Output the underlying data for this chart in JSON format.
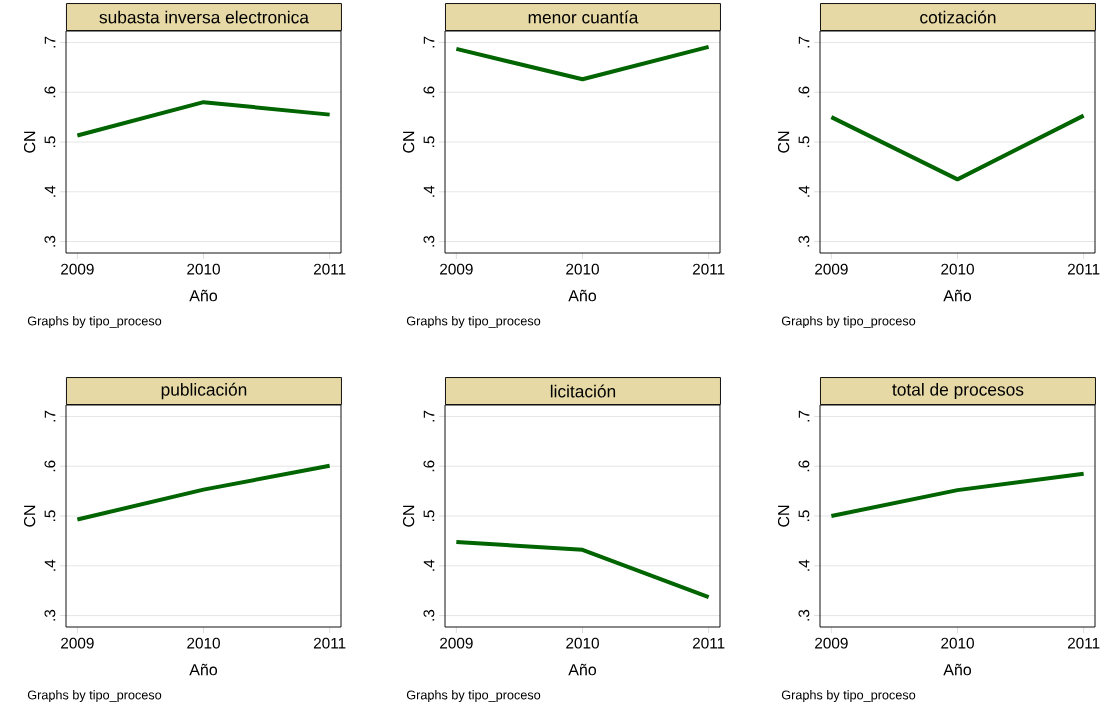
{
  "chart_data": [
    {
      "type": "line",
      "title": "subasta inversa electronica",
      "xlabel": "Año",
      "ylabel": "CN",
      "x": [
        2009,
        2010,
        2011
      ],
      "series": [
        {
          "color": "#006400",
          "values": [
            0.513,
            0.58,
            0.555
          ]
        }
      ],
      "xlim": [
        2008.91,
        2011.09
      ],
      "ylim": [
        0.277,
        0.723
      ],
      "xticks": [
        2009,
        2010,
        2011
      ],
      "yticks": [
        {
          "value": 0.3,
          "label": ".3"
        },
        {
          "value": 0.4,
          "label": ".4"
        },
        {
          "value": 0.5,
          "label": ".5"
        },
        {
          "value": 0.6,
          "label": ".6"
        },
        {
          "value": 0.7,
          "label": ".7"
        }
      ],
      "grid": "y",
      "annotations": [
        "Graphs by tipo_proceso"
      ]
    },
    {
      "type": "line",
      "title": "menor cuantía",
      "xlabel": "Año",
      "ylabel": "CN",
      "x": [
        2009,
        2010,
        2011
      ],
      "series": [
        {
          "color": "#006400",
          "values": [
            0.687,
            0.626,
            0.691
          ]
        }
      ],
      "xlim": [
        2008.91,
        2011.09
      ],
      "ylim": [
        0.277,
        0.723
      ],
      "xticks": [
        2009,
        2010,
        2011
      ],
      "yticks": [
        {
          "value": 0.3,
          "label": ".3"
        },
        {
          "value": 0.4,
          "label": ".4"
        },
        {
          "value": 0.5,
          "label": ".5"
        },
        {
          "value": 0.6,
          "label": ".6"
        },
        {
          "value": 0.7,
          "label": ".7"
        }
      ],
      "grid": "y",
      "annotations": [
        "Graphs by tipo_proceso"
      ]
    },
    {
      "type": "line",
      "title": "cotización",
      "xlabel": "Año",
      "ylabel": "CN",
      "x": [
        2009,
        2010,
        2011
      ],
      "series": [
        {
          "color": "#006400",
          "values": [
            0.55,
            0.425,
            0.553
          ]
        }
      ],
      "xlim": [
        2008.91,
        2011.09
      ],
      "ylim": [
        0.277,
        0.723
      ],
      "xticks": [
        2009,
        2010,
        2011
      ],
      "yticks": [
        {
          "value": 0.3,
          "label": ".3"
        },
        {
          "value": 0.4,
          "label": ".4"
        },
        {
          "value": 0.5,
          "label": ".5"
        },
        {
          "value": 0.6,
          "label": ".6"
        },
        {
          "value": 0.7,
          "label": ".7"
        }
      ],
      "grid": "y",
      "annotations": [
        "Graphs by tipo_proceso"
      ]
    },
    {
      "type": "line",
      "title": "publicación",
      "xlabel": "Año",
      "ylabel": "CN",
      "x": [
        2009,
        2010,
        2011
      ],
      "series": [
        {
          "color": "#006400",
          "values": [
            0.493,
            0.553,
            0.601
          ]
        }
      ],
      "xlim": [
        2008.91,
        2011.09
      ],
      "ylim": [
        0.277,
        0.723
      ],
      "xticks": [
        2009,
        2010,
        2011
      ],
      "yticks": [
        {
          "value": 0.3,
          "label": ".3"
        },
        {
          "value": 0.4,
          "label": ".4"
        },
        {
          "value": 0.5,
          "label": ".5"
        },
        {
          "value": 0.6,
          "label": ".6"
        },
        {
          "value": 0.7,
          "label": ".7"
        }
      ],
      "grid": "y",
      "annotations": [
        "Graphs by tipo_proceso"
      ]
    },
    {
      "type": "line",
      "title": "licitación",
      "xlabel": "Año",
      "ylabel": "CN",
      "x": [
        2009,
        2010,
        2011
      ],
      "series": [
        {
          "color": "#006400",
          "values": [
            0.448,
            0.432,
            0.337
          ]
        }
      ],
      "xlim": [
        2008.91,
        2011.09
      ],
      "ylim": [
        0.277,
        0.723
      ],
      "xticks": [
        2009,
        2010,
        2011
      ],
      "yticks": [
        {
          "value": 0.3,
          "label": ".3"
        },
        {
          "value": 0.4,
          "label": ".4"
        },
        {
          "value": 0.5,
          "label": ".5"
        },
        {
          "value": 0.6,
          "label": ".6"
        },
        {
          "value": 0.7,
          "label": ".7"
        }
      ],
      "grid": "y",
      "annotations": [
        "Graphs by tipo_proceso"
      ]
    },
    {
      "type": "line",
      "title": "total de procesos",
      "xlabel": "Año",
      "ylabel": "CN",
      "x": [
        2009,
        2010,
        2011
      ],
      "series": [
        {
          "color": "#006400",
          "values": [
            0.5,
            0.552,
            0.585
          ]
        }
      ],
      "xlim": [
        2008.91,
        2011.09
      ],
      "ylim": [
        0.277,
        0.723
      ],
      "xticks": [
        2009,
        2010,
        2011
      ],
      "yticks": [
        {
          "value": 0.3,
          "label": ".3"
        },
        {
          "value": 0.4,
          "label": ".4"
        },
        {
          "value": 0.5,
          "label": ".5"
        },
        {
          "value": 0.6,
          "label": ".6"
        },
        {
          "value": 0.7,
          "label": ".7"
        }
      ],
      "grid": "y",
      "annotations": [
        "Graphs by tipo_proceso"
      ]
    }
  ]
}
